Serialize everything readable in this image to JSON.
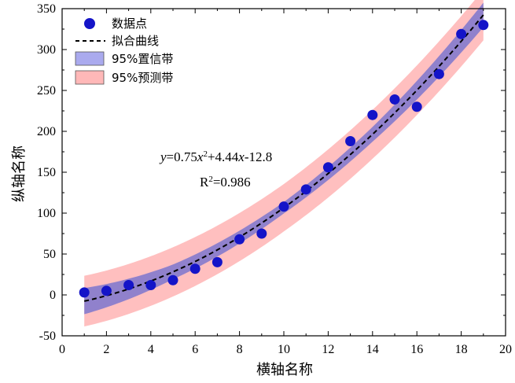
{
  "chart_data": {
    "type": "scatter",
    "xlabel": "横轴名称",
    "ylabel": "纵轴名称",
    "xlim": [
      0,
      20
    ],
    "ylim": [
      -50,
      350
    ],
    "x_ticks": [
      0,
      2,
      4,
      6,
      8,
      10,
      12,
      14,
      16,
      18,
      20
    ],
    "y_ticks": [
      -50,
      0,
      50,
      100,
      150,
      200,
      250,
      300,
      350
    ],
    "grid": false,
    "legend_position": "top-left",
    "points": {
      "name": "数据点",
      "color": "#1414c8",
      "x": [
        1,
        2,
        3,
        4,
        5,
        6,
        7,
        8,
        9,
        10,
        11,
        12,
        13,
        14,
        15,
        16,
        17,
        18,
        19
      ],
      "y": [
        3,
        5,
        12,
        12,
        18,
        32,
        40,
        68,
        75,
        108,
        129,
        156,
        188,
        220,
        239,
        230,
        270,
        319,
        330
      ]
    },
    "fit": {
      "name": "拟合曲线",
      "a": 0.75,
      "b": 4.44,
      "c": -12.8,
      "x_range": [
        1,
        19
      ],
      "color": "#000000",
      "style": "dashed"
    },
    "confidence_band": {
      "name": "95%置信带",
      "color": "#8a7dcc",
      "half_width_at_x": [
        [
          1,
          16
        ],
        [
          5,
          9
        ],
        [
          10,
          7
        ],
        [
          14,
          9
        ],
        [
          19,
          15
        ]
      ]
    },
    "prediction_band": {
      "name": "95%预测带",
      "color": "#ffb4b4",
      "half_width_at_x": [
        [
          1,
          31
        ],
        [
          10,
          29
        ],
        [
          19,
          31
        ]
      ]
    },
    "equation_parts": {
      "y": "y",
      "eq1": "=0.75",
      "x1": "x",
      "exp1": "2",
      "eq2": "+4.44",
      "x2": "x",
      "eq3": "-12.8"
    },
    "r2_parts": {
      "r": "R",
      "exp": "2",
      "val": "=0.986"
    }
  }
}
